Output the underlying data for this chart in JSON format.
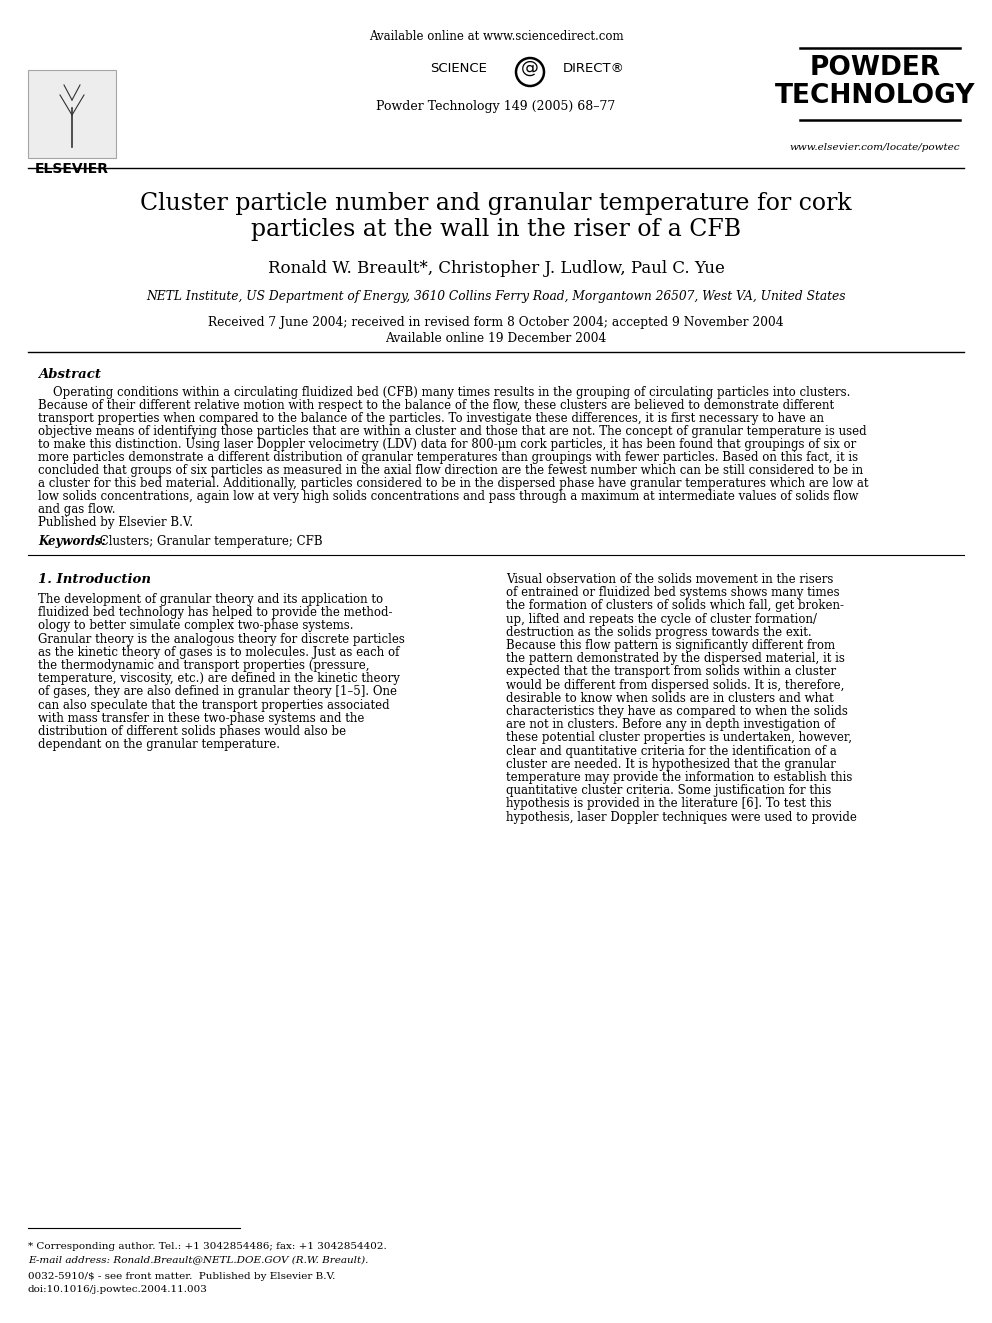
{
  "bg_color": "#ffffff",
  "header_available_online": "Available online at www.sciencedirect.com",
  "journal_name": "Powder Technology 149 (2005) 68–77",
  "powder_technology_label": "POWDER\nTECHNOLOGY",
  "elsevier_label": "ELSEVIER",
  "website": "www.elsevier.com/locate/powtec",
  "article_title_line1": "Cluster particle number and granular temperature for cork",
  "article_title_line2": "particles at the wall in the riser of a CFB",
  "authors": "Ronald W. Breault*, Christopher J. Ludlow, Paul C. Yue",
  "affiliation": "NETL Institute, US Department of Energy, 3610 Collins Ferry Road, Morgantown 26507, West VA, United States",
  "received_line1": "Received 7 June 2004; received in revised form 8 October 2004; accepted 9 November 2004",
  "received_line2": "Available online 19 December 2004",
  "abstract_title": "Abstract",
  "abstract_lines": [
    "    Operating conditions within a circulating fluidized bed (CFB) many times results in the grouping of circulating particles into clusters.",
    "Because of their different relative motion with respect to the balance of the flow, these clusters are believed to demonstrate different",
    "transport properties when compared to the balance of the particles. To investigate these differences, it is first necessary to have an",
    "objective means of identifying those particles that are within a cluster and those that are not. The concept of granular temperature is used",
    "to make this distinction. Using laser Doppler velocimetry (LDV) data for 800-μm cork particles, it has been found that groupings of six or",
    "more particles demonstrate a different distribution of granular temperatures than groupings with fewer particles. Based on this fact, it is",
    "concluded that groups of six particles as measured in the axial flow direction are the fewest number which can be still considered to be in",
    "a cluster for this bed material. Additionally, particles considered to be in the dispersed phase have granular temperatures which are low at",
    "low solids concentrations, again low at very high solids concentrations and pass through a maximum at intermediate values of solids flow",
    "and gas flow.",
    "Published by Elsevier B.V."
  ],
  "keywords_label": "Keywords:",
  "keywords": " Clusters; Granular temperature; CFB",
  "section1_title": "1. Introduction",
  "left_col_lines": [
    "The development of granular theory and its application to",
    "fluidized bed technology has helped to provide the method-",
    "ology to better simulate complex two-phase systems.",
    "Granular theory is the analogous theory for discrete particles",
    "as the kinetic theory of gases is to molecules. Just as each of",
    "the thermodynamic and transport properties (pressure,",
    "temperature, viscosity, etc.) are defined in the kinetic theory",
    "of gases, they are also defined in granular theory [1–5]. One",
    "can also speculate that the transport properties associated",
    "with mass transfer in these two-phase systems and the",
    "distribution of different solids phases would also be",
    "dependant on the granular temperature."
  ],
  "right_col_lines": [
    "Visual observation of the solids movement in the risers",
    "of entrained or fluidized bed systems shows many times",
    "the formation of clusters of solids which fall, get broken-",
    "up, lifted and repeats the cycle of cluster formation/",
    "destruction as the solids progress towards the exit.",
    "Because this flow pattern is significantly different from",
    "the pattern demonstrated by the dispersed material, it is",
    "expected that the transport from solids within a cluster",
    "would be different from dispersed solids. It is, therefore,",
    "desirable to know when solids are in clusters and what",
    "characteristics they have as compared to when the solids",
    "are not in clusters. Before any in depth investigation of",
    "these potential cluster properties is undertaken, however,",
    "clear and quantitative criteria for the identification of a",
    "cluster are needed. It is hypothesized that the granular",
    "temperature may provide the information to establish this",
    "quantitative cluster criteria. Some justification for this",
    "hypothesis is provided in the literature [6]. To test this",
    "hypothesis, laser Doppler techniques were used to provide"
  ],
  "footnote_star": "* Corresponding author. Tel.: +1 3042854486; fax: +1 3042854402.",
  "footnote_email": "E-mail address: Ronald.Breault@NETL.DOE.GOV (R.W. Breault).",
  "footer_issn": "0032-5910/$ - see front matter.  Published by Elsevier B.V.",
  "footer_doi": "doi:10.1016/j.powtec.2004.11.003"
}
